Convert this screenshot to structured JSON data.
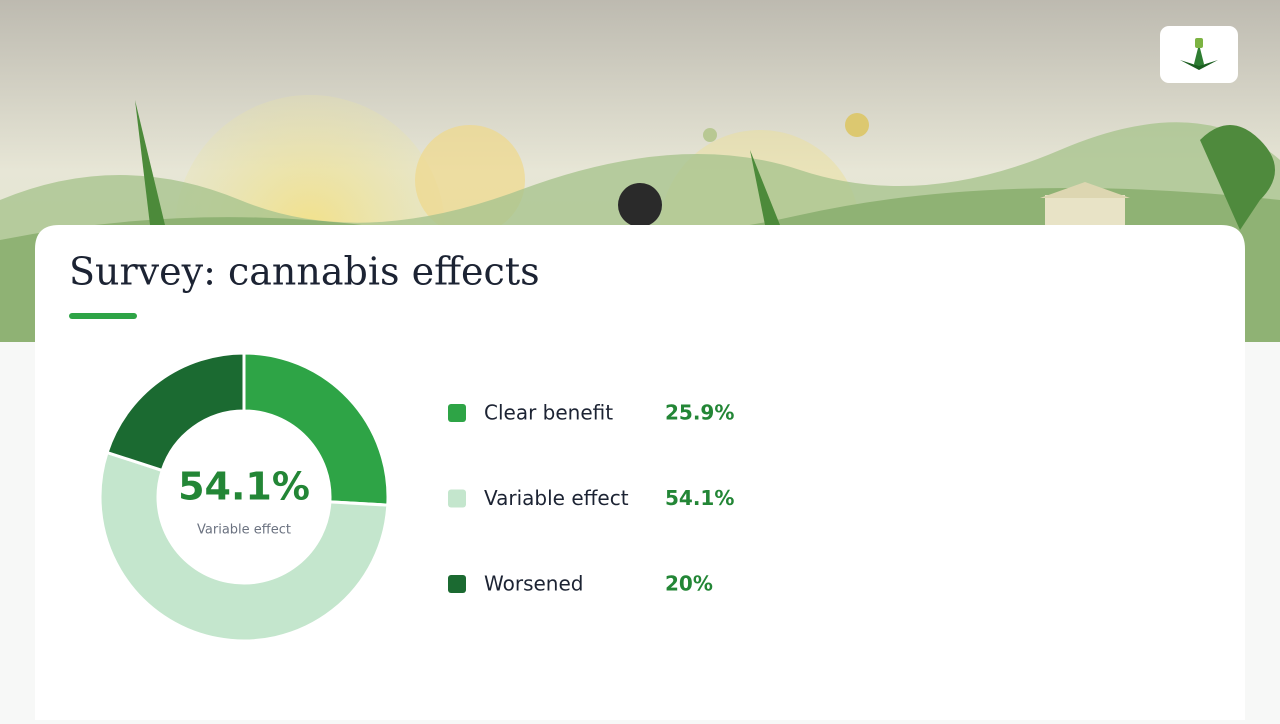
{
  "chart_data": {
    "type": "donut",
    "title": "Survey: cannabis effects",
    "categories": [
      "Clear benefit",
      "Variable effect",
      "Worsened"
    ],
    "values": [
      25.9,
      54.1,
      20
    ],
    "value_labels": [
      "25.9%",
      "54.1%",
      "20%"
    ],
    "colors": [
      "#2ea446",
      "#c4e6cd",
      "#1b6a31"
    ],
    "highlight": 1
  }
}
